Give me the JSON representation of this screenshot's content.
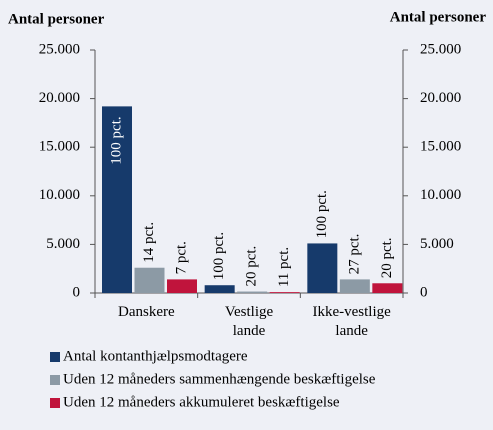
{
  "chart_data": {
    "type": "bar",
    "y_axis_label": "Antal personer",
    "y2_axis_label": "Antal personer",
    "categories": [
      "Danskere",
      "Vestlige lande",
      "Ikke-vestlige lande"
    ],
    "series": [
      {
        "name": "Antal kontanthjælpsmodtagere",
        "color": "#163a6b",
        "values": [
          19200,
          800,
          5100
        ],
        "annotations": [
          "100 pct.",
          "100 pct.",
          "100 pct."
        ]
      },
      {
        "name": "Uden 12 måneders sammenhængende beskæftigelse",
        "color": "#8c9aa5",
        "values": [
          2600,
          150,
          1400
        ],
        "annotations": [
          "14 pct.",
          "20 pct.",
          "27 pct."
        ]
      },
      {
        "name": "Uden 12 måneders akkumuleret beskæftigelse",
        "color": "#c0143c",
        "values": [
          1400,
          90,
          1000
        ],
        "annotations": [
          "7 pct.",
          "11 pct.",
          "20 pct."
        ]
      }
    ],
    "ylim": [
      0,
      25000
    ],
    "yticks": [
      0,
      {
        "value": 5000,
        "label": "5.000"
      },
      {
        "value": 10000,
        "label": "10.000"
      },
      {
        "value": 15000,
        "label": "15.000"
      },
      {
        "value": 20000,
        "label": "20.000"
      },
      {
        "value": 25000,
        "label": "25.000"
      }
    ],
    "y2lim": [
      0,
      25000
    ],
    "y2ticks": [
      0,
      {
        "value": 5000,
        "label": "5.000"
      },
      {
        "value": 10000,
        "label": "10.000"
      },
      {
        "value": 15000,
        "label": "15.000"
      },
      {
        "value": 20000,
        "label": "20.000"
      },
      {
        "value": 25000,
        "label": "25.000"
      }
    ]
  }
}
